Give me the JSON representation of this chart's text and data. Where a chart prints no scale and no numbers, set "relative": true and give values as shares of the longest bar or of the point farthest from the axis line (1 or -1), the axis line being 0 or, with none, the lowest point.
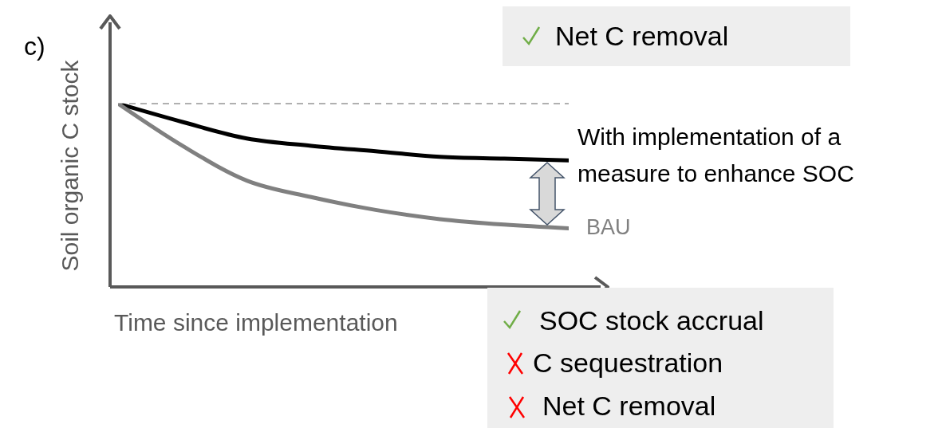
{
  "chart_data": {
    "type": "line",
    "relative": true,
    "xlabel": "Time since implementation",
    "ylabel": "Soil organic C stock",
    "categories": [
      null,
      null,
      null,
      null,
      null,
      null,
      null,
      null
    ],
    "series": [
      {
        "name": "With implementation of a measure to enhance SOC",
        "color": "#000000",
        "values": [
          1,
          0.9,
          0.81,
          0.77,
          0.74,
          0.71,
          0.7,
          0.69
        ]
      },
      {
        "name": "BAU",
        "color": "#808080",
        "values": [
          1,
          0.77,
          0.58,
          0.49,
          0.42,
          0.37,
          0.34,
          0.32
        ]
      }
    ],
    "ref_lines": [
      {
        "axis": "y",
        "value": 1,
        "color": "#b0b0b0",
        "line_style": "dashed"
      }
    ],
    "annotations": [
      "Net C removal",
      "SOC stock accrual",
      "C sequestration",
      "Net C removal",
      "c)"
    ]
  }
}
